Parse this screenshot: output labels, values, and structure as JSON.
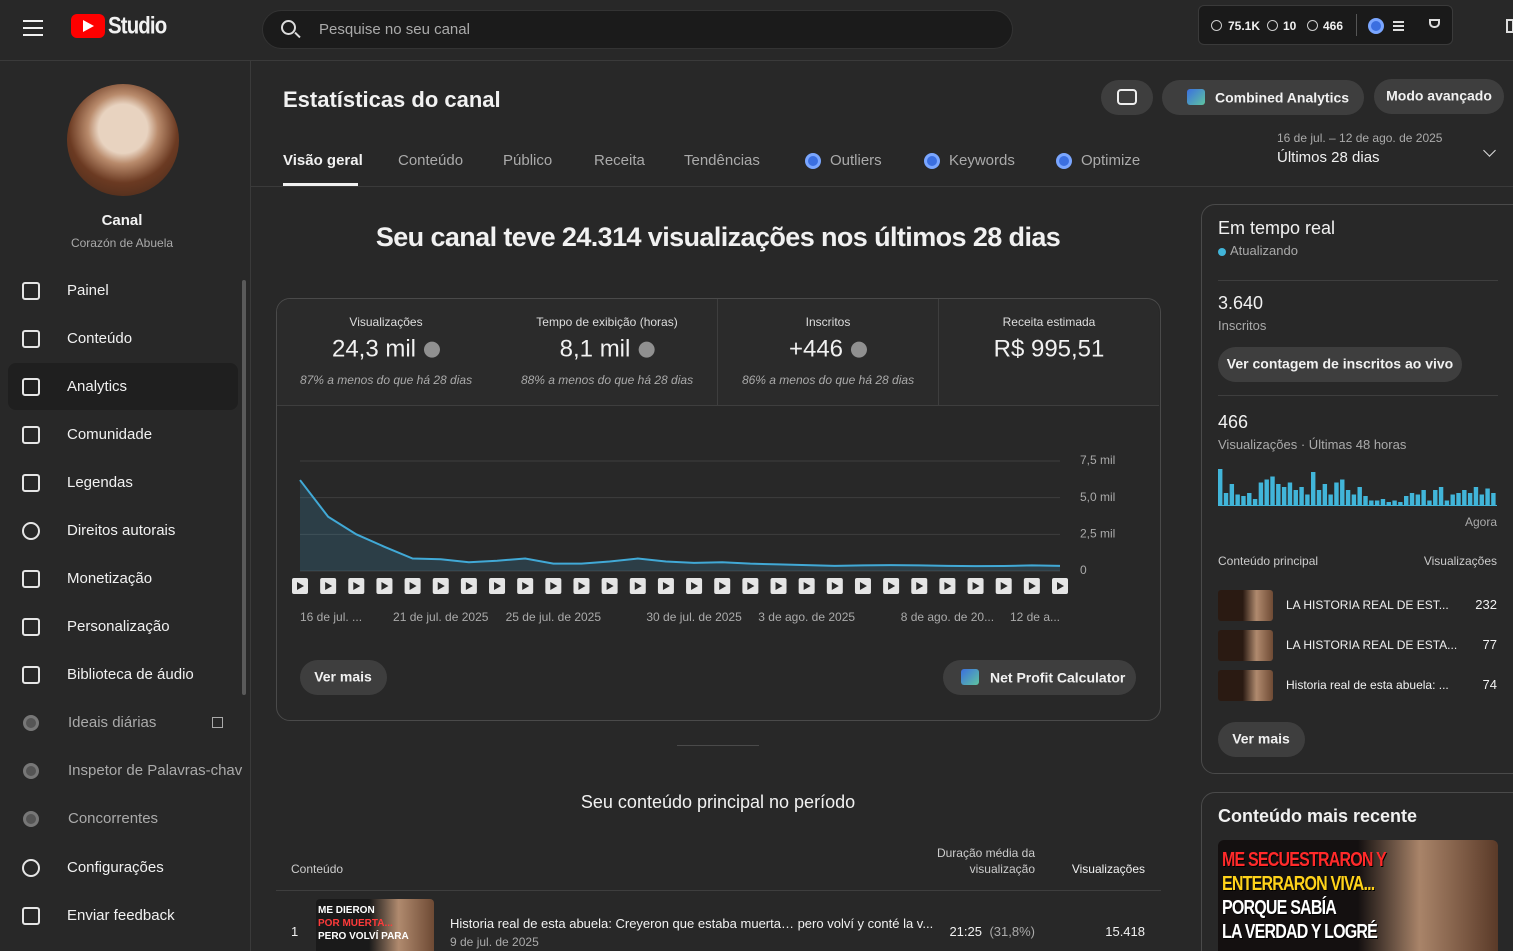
{
  "topbar": {
    "logo": "Studio",
    "search": "Pesquise no seu canal",
    "stats": [
      "75.1K",
      "10",
      "466"
    ]
  },
  "sidebar": {
    "channel_label": "Canal",
    "channel_name": "Corazón de Abuela",
    "nav": [
      "Painel",
      "Conteúdo",
      "Analytics",
      "Comunidade",
      "Legendas",
      "Direitos autorais",
      "Monetização",
      "Personalização",
      "Biblioteca de áudio",
      "Ideais diárias",
      "Inspetor de Palavras-chav",
      "Concorrentes"
    ],
    "footer": [
      "Configurações",
      "Enviar feedback"
    ]
  },
  "header": {
    "title": "Estatísticas do canal",
    "combined": "Combined Analytics",
    "advanced": "Modo avançado",
    "date_range": "16 de jul. – 12 de ago. de 2025",
    "period": "Últimos 28 dias"
  },
  "tabs": [
    "Visão geral",
    "Conteúdo",
    "Público",
    "Receita",
    "Tendências",
    "Outliers",
    "Keywords",
    "Optimize"
  ],
  "headline": "Seu canal teve 24.314 visualizações nos últimos 28 dias",
  "metrics": [
    {
      "label": "Visualizações",
      "value": "24,3 mil",
      "note": "87% a menos do que há 28 dias"
    },
    {
      "label": "Tempo de exibição (horas)",
      "value": "8,1 mil",
      "note": "88% a menos do que há 28 dias"
    },
    {
      "label": "Inscritos",
      "value": "+446",
      "note": "86% a menos do que há 28 dias"
    },
    {
      "label": "Receita estimada",
      "value": "R$ 995,51"
    }
  ],
  "chart_data": [
    {
      "type": "area",
      "color": "#41a9d6",
      "categories": [
        "16 de jul. ...",
        null,
        null,
        null,
        null,
        "21 de jul. de 2025",
        null,
        null,
        null,
        "25 de jul. de 2025",
        null,
        null,
        null,
        null,
        "30 de jul. de 2025",
        null,
        null,
        null,
        "3 de ago. de 2025",
        null,
        null,
        null,
        null,
        "8 de ago. de 20...",
        null,
        null,
        null,
        "12 de a..."
      ],
      "values": [
        6200,
        3700,
        2500,
        1650,
        850,
        800,
        600,
        700,
        850,
        500,
        500,
        650,
        850,
        650,
        550,
        600,
        500,
        450,
        400,
        350,
        380,
        400,
        380,
        350,
        330,
        340,
        380,
        350
      ],
      "ylim": [
        0,
        7500
      ],
      "yticks": [
        0,
        {
          "value": 2500,
          "label": "2,5 mil"
        },
        {
          "value": 5000,
          "label": "5,0 mil"
        },
        {
          "value": 7500,
          "label": "7,5 mil"
        }
      ],
      "grid": true
    },
    {
      "type": "bar",
      "color": "#41b5d9",
      "values": [
        24,
        8,
        14,
        7,
        6,
        8,
        4,
        15,
        17,
        19,
        14,
        12,
        15,
        10,
        12,
        7,
        22,
        10,
        14,
        7,
        15,
        17,
        10,
        7,
        12,
        6,
        3,
        3,
        4,
        2,
        3,
        2,
        6,
        8,
        7,
        10,
        3,
        10,
        12,
        3,
        7,
        8,
        10,
        8,
        12,
        7,
        11,
        8
      ]
    }
  ],
  "buttons": {
    "more": "Ver mais",
    "calc": "Net Profit Calculator"
  },
  "top_content": {
    "title": "Seu conteúdo principal no período",
    "columns": [
      "Conteúdo",
      "Duração média da visualização",
      "Visualizações"
    ],
    "rows": [
      {
        "rank": "1",
        "thumb_text": [
          "ME DIERON",
          "POR MUERTA...",
          "PERO VOLVÍ PARA"
        ],
        "title": "Historia real de esta abuela: Creyeron que estaba muerta… pero volví y conté la v...",
        "date": "9 de jul. de 2025",
        "duration": "21:25",
        "pct": "(31,8%)",
        "views": "15.418"
      }
    ]
  },
  "realtime": {
    "title": "Em tempo real",
    "status": "Atualizando",
    "subs": "3.640",
    "subs_label": "Inscritos",
    "live_button": "Ver contagem de inscritos ao vivo",
    "views": "466",
    "views_label": "Visualizações · Últimas 48 horas",
    "now": "Agora",
    "top_label": "Conteúdo principal",
    "top_views_label": "Visualizações",
    "rows": [
      {
        "title": "LA HISTORIA REAL DE EST...",
        "views": "232"
      },
      {
        "title": "LA HISTORIA REAL DE ESTA...",
        "views": "77"
      },
      {
        "title": "Historia real de esta abuela: ...",
        "views": "74"
      }
    ],
    "more": "Ver mais"
  },
  "recent": {
    "title": "Conteúdo mais recente",
    "thumb_text": [
      "ME SECUESTRARON Y",
      "ENTERRARON VIVA...",
      "PORQUE SABÍA",
      "LA VERDAD Y LOGRÉ"
    ]
  }
}
